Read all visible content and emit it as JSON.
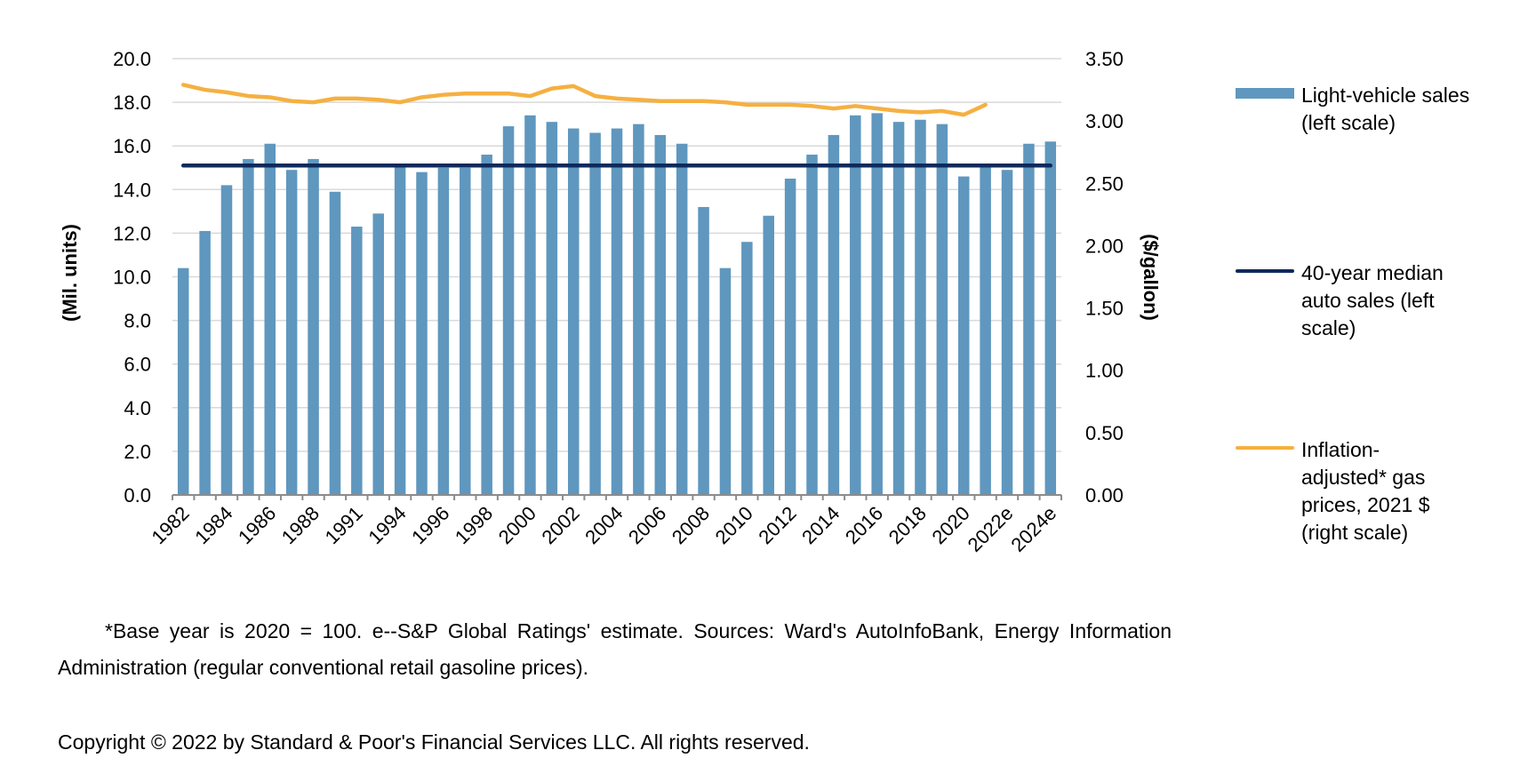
{
  "chart_data": {
    "type": "bar",
    "title": "",
    "categories": [
      "1982",
      "1983",
      "1984",
      "1985",
      "1986",
      "1987",
      "1988",
      "1990",
      "1991",
      "1992",
      "1994",
      "1995",
      "1996",
      "1997",
      "1998",
      "1999",
      "2000",
      "2001",
      "2002",
      "2003",
      "2004",
      "2005",
      "2006",
      "2007",
      "2008",
      "2009",
      "2010",
      "2011",
      "2012",
      "2013",
      "2014",
      "2015",
      "2016",
      "2017",
      "2018",
      "2019",
      "2020",
      "2021",
      "2022e",
      "2023e",
      "2024e"
    ],
    "tick_labels": [
      "1982",
      "1984",
      "1986",
      "1988",
      "1991",
      "1994",
      "1996",
      "1998",
      "2000",
      "2002",
      "2004",
      "2006",
      "2008",
      "2010",
      "2012",
      "2014",
      "2016",
      "2018",
      "2020",
      "2022e",
      "2024e"
    ],
    "tick_label_every": 2,
    "series": [
      {
        "name": "Light-vehicle sales (left scale)",
        "type": "bar",
        "axis": "left",
        "color": "#5f97be",
        "values": [
          10.4,
          12.1,
          14.2,
          15.4,
          16.1,
          14.9,
          15.4,
          13.9,
          12.3,
          12.9,
          15.1,
          14.8,
          15.0,
          15.0,
          15.6,
          16.9,
          17.4,
          17.1,
          16.8,
          16.6,
          16.8,
          17.0,
          16.5,
          16.1,
          13.2,
          10.4,
          11.6,
          12.8,
          14.5,
          15.6,
          16.5,
          17.4,
          17.5,
          17.1,
          17.2,
          17.0,
          14.6,
          15.1,
          14.9,
          16.1,
          16.2
        ]
      },
      {
        "name": "40-year median auto sales (left scale)",
        "type": "line",
        "axis": "left",
        "color": "#0e2a5c",
        "values": [
          15.1,
          15.1,
          15.1,
          15.1,
          15.1,
          15.1,
          15.1,
          15.1,
          15.1,
          15.1,
          15.1,
          15.1,
          15.1,
          15.1,
          15.1,
          15.1,
          15.1,
          15.1,
          15.1,
          15.1,
          15.1,
          15.1,
          15.1,
          15.1,
          15.1,
          15.1,
          15.1,
          15.1,
          15.1,
          15.1,
          15.1,
          15.1,
          15.1,
          15.1,
          15.1,
          15.1,
          15.1,
          15.1,
          15.1,
          15.1,
          15.1
        ]
      },
      {
        "name": "Inflation-adjusted* gas prices, 2021 $ (right scale)",
        "type": "line",
        "axis": "right",
        "color": "#f5b041",
        "values": [
          3.29,
          3.25,
          3.23,
          3.2,
          3.19,
          3.16,
          3.15,
          3.18,
          3.18,
          3.17,
          3.15,
          3.19,
          3.21,
          3.22,
          3.22,
          3.22,
          3.2,
          3.26,
          3.28,
          3.2,
          3.18,
          3.17,
          3.16,
          3.16,
          3.16,
          3.15,
          3.13,
          3.13,
          3.13,
          3.12,
          3.1,
          3.12,
          3.1,
          3.08,
          3.07,
          3.08,
          3.05,
          3.13,
          null,
          null,
          null
        ]
      }
    ],
    "left_axis": {
      "label": "(Mil. units)",
      "ylim": [
        0,
        20
      ],
      "ticks": [
        "0.0",
        "2.0",
        "4.0",
        "6.0",
        "8.0",
        "10.0",
        "12.0",
        "14.0",
        "16.0",
        "18.0",
        "20.0"
      ]
    },
    "right_axis": {
      "label": "($/gallon)",
      "ylim": [
        0,
        3.5
      ],
      "ticks": [
        "0.00",
        "0.50",
        "1.00",
        "1.50",
        "2.00",
        "2.50",
        "3.00",
        "3.50"
      ]
    },
    "xlabel": "",
    "grid": true,
    "legend_position": "right"
  },
  "legend": [
    {
      "label": "Light-vehicle sales\n(left scale)",
      "kind": "bar",
      "color": "#5f97be"
    },
    {
      "label": "40-year median\nauto sales (left\nscale)",
      "kind": "line",
      "color": "#0e2a5c"
    },
    {
      "label": " Inflation-\nadjusted* gas\nprices, 2021 $\n(right scale)",
      "kind": "line",
      "color": "#f5b041"
    }
  ],
  "footnote": "*Base year is 2020 = 100. e--S&P Global Ratings' estimate. Sources: Ward's AutoInfoBank, Energy Information Administration (regular conventional retail gasoline prices).",
  "copyright": "Copyright © 2022 by Standard & Poor's Financial Services LLC. All rights reserved."
}
